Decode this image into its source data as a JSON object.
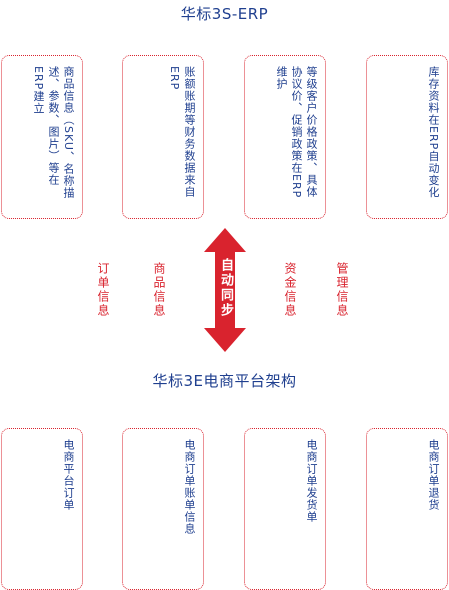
{
  "top_title": "华标3S-ERP",
  "bottom_title": "华标3E电商平台架构",
  "top_boxes": [
    {
      "text": "商品信息（SKU、名称描述、参数、图片）等在ERP建立"
    },
    {
      "text": "账额账期等财务数据来自ERP"
    },
    {
      "text": "等级客户价格政策、具体协议价、促销政策在ERP维护"
    },
    {
      "text": "库存资料在ERP自动变化"
    }
  ],
  "flow_labels": [
    "订单信息",
    "商品信息",
    "资金信息",
    "管理信息"
  ],
  "sync_label": "自动同步",
  "bottom_boxes": [
    {
      "text": "电商平台订单"
    },
    {
      "text": "电商订单账单信息"
    },
    {
      "text": "电商订单发货单"
    },
    {
      "text": "电商订单退货"
    }
  ],
  "colors": {
    "accent": "#d9232e",
    "text": "#1f3f8f"
  }
}
